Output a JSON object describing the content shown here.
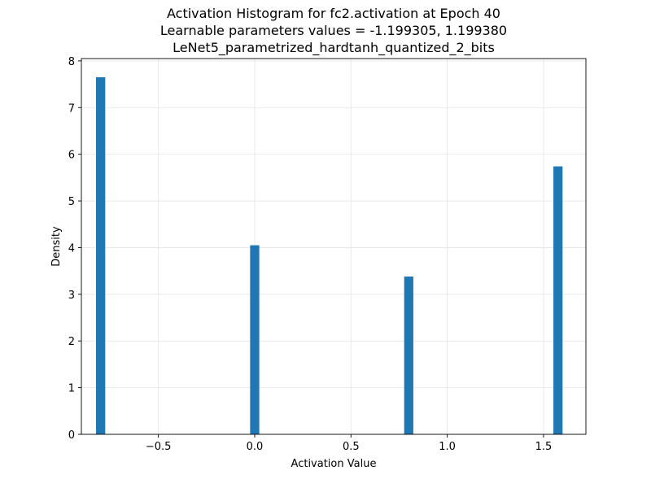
{
  "chart_data": {
    "type": "bar",
    "title_lines": [
      "Activation Histogram for fc2.activation at Epoch 40",
      "Learnable parameters values = -1.199305, 1.199380",
      "LeNet5_parametrized_hardtanh_quantized_2_bits"
    ],
    "xlabel": "Activation Value",
    "ylabel": "Density",
    "xlim": [
      -0.9,
      1.72
    ],
    "ylim": [
      0,
      8.05
    ],
    "xticks": [
      -0.5,
      0.0,
      0.5,
      1.0,
      1.5
    ],
    "xtick_labels": [
      "−0.5",
      "0.0",
      "0.5",
      "1.0",
      "1.5"
    ],
    "yticks": [
      0,
      1,
      2,
      3,
      4,
      5,
      6,
      7,
      8
    ],
    "ytick_labels": [
      "0",
      "1",
      "2",
      "3",
      "4",
      "5",
      "6",
      "7",
      "8"
    ],
    "grid": true,
    "bar_color": "#1f77b4",
    "bin_width": 0.0476,
    "bins": [
      {
        "x": -0.8,
        "density": 7.65
      },
      {
        "x": 0.0,
        "density": 4.05
      },
      {
        "x": 0.8,
        "density": 3.38
      },
      {
        "x": 1.575,
        "density": 5.74
      }
    ]
  }
}
